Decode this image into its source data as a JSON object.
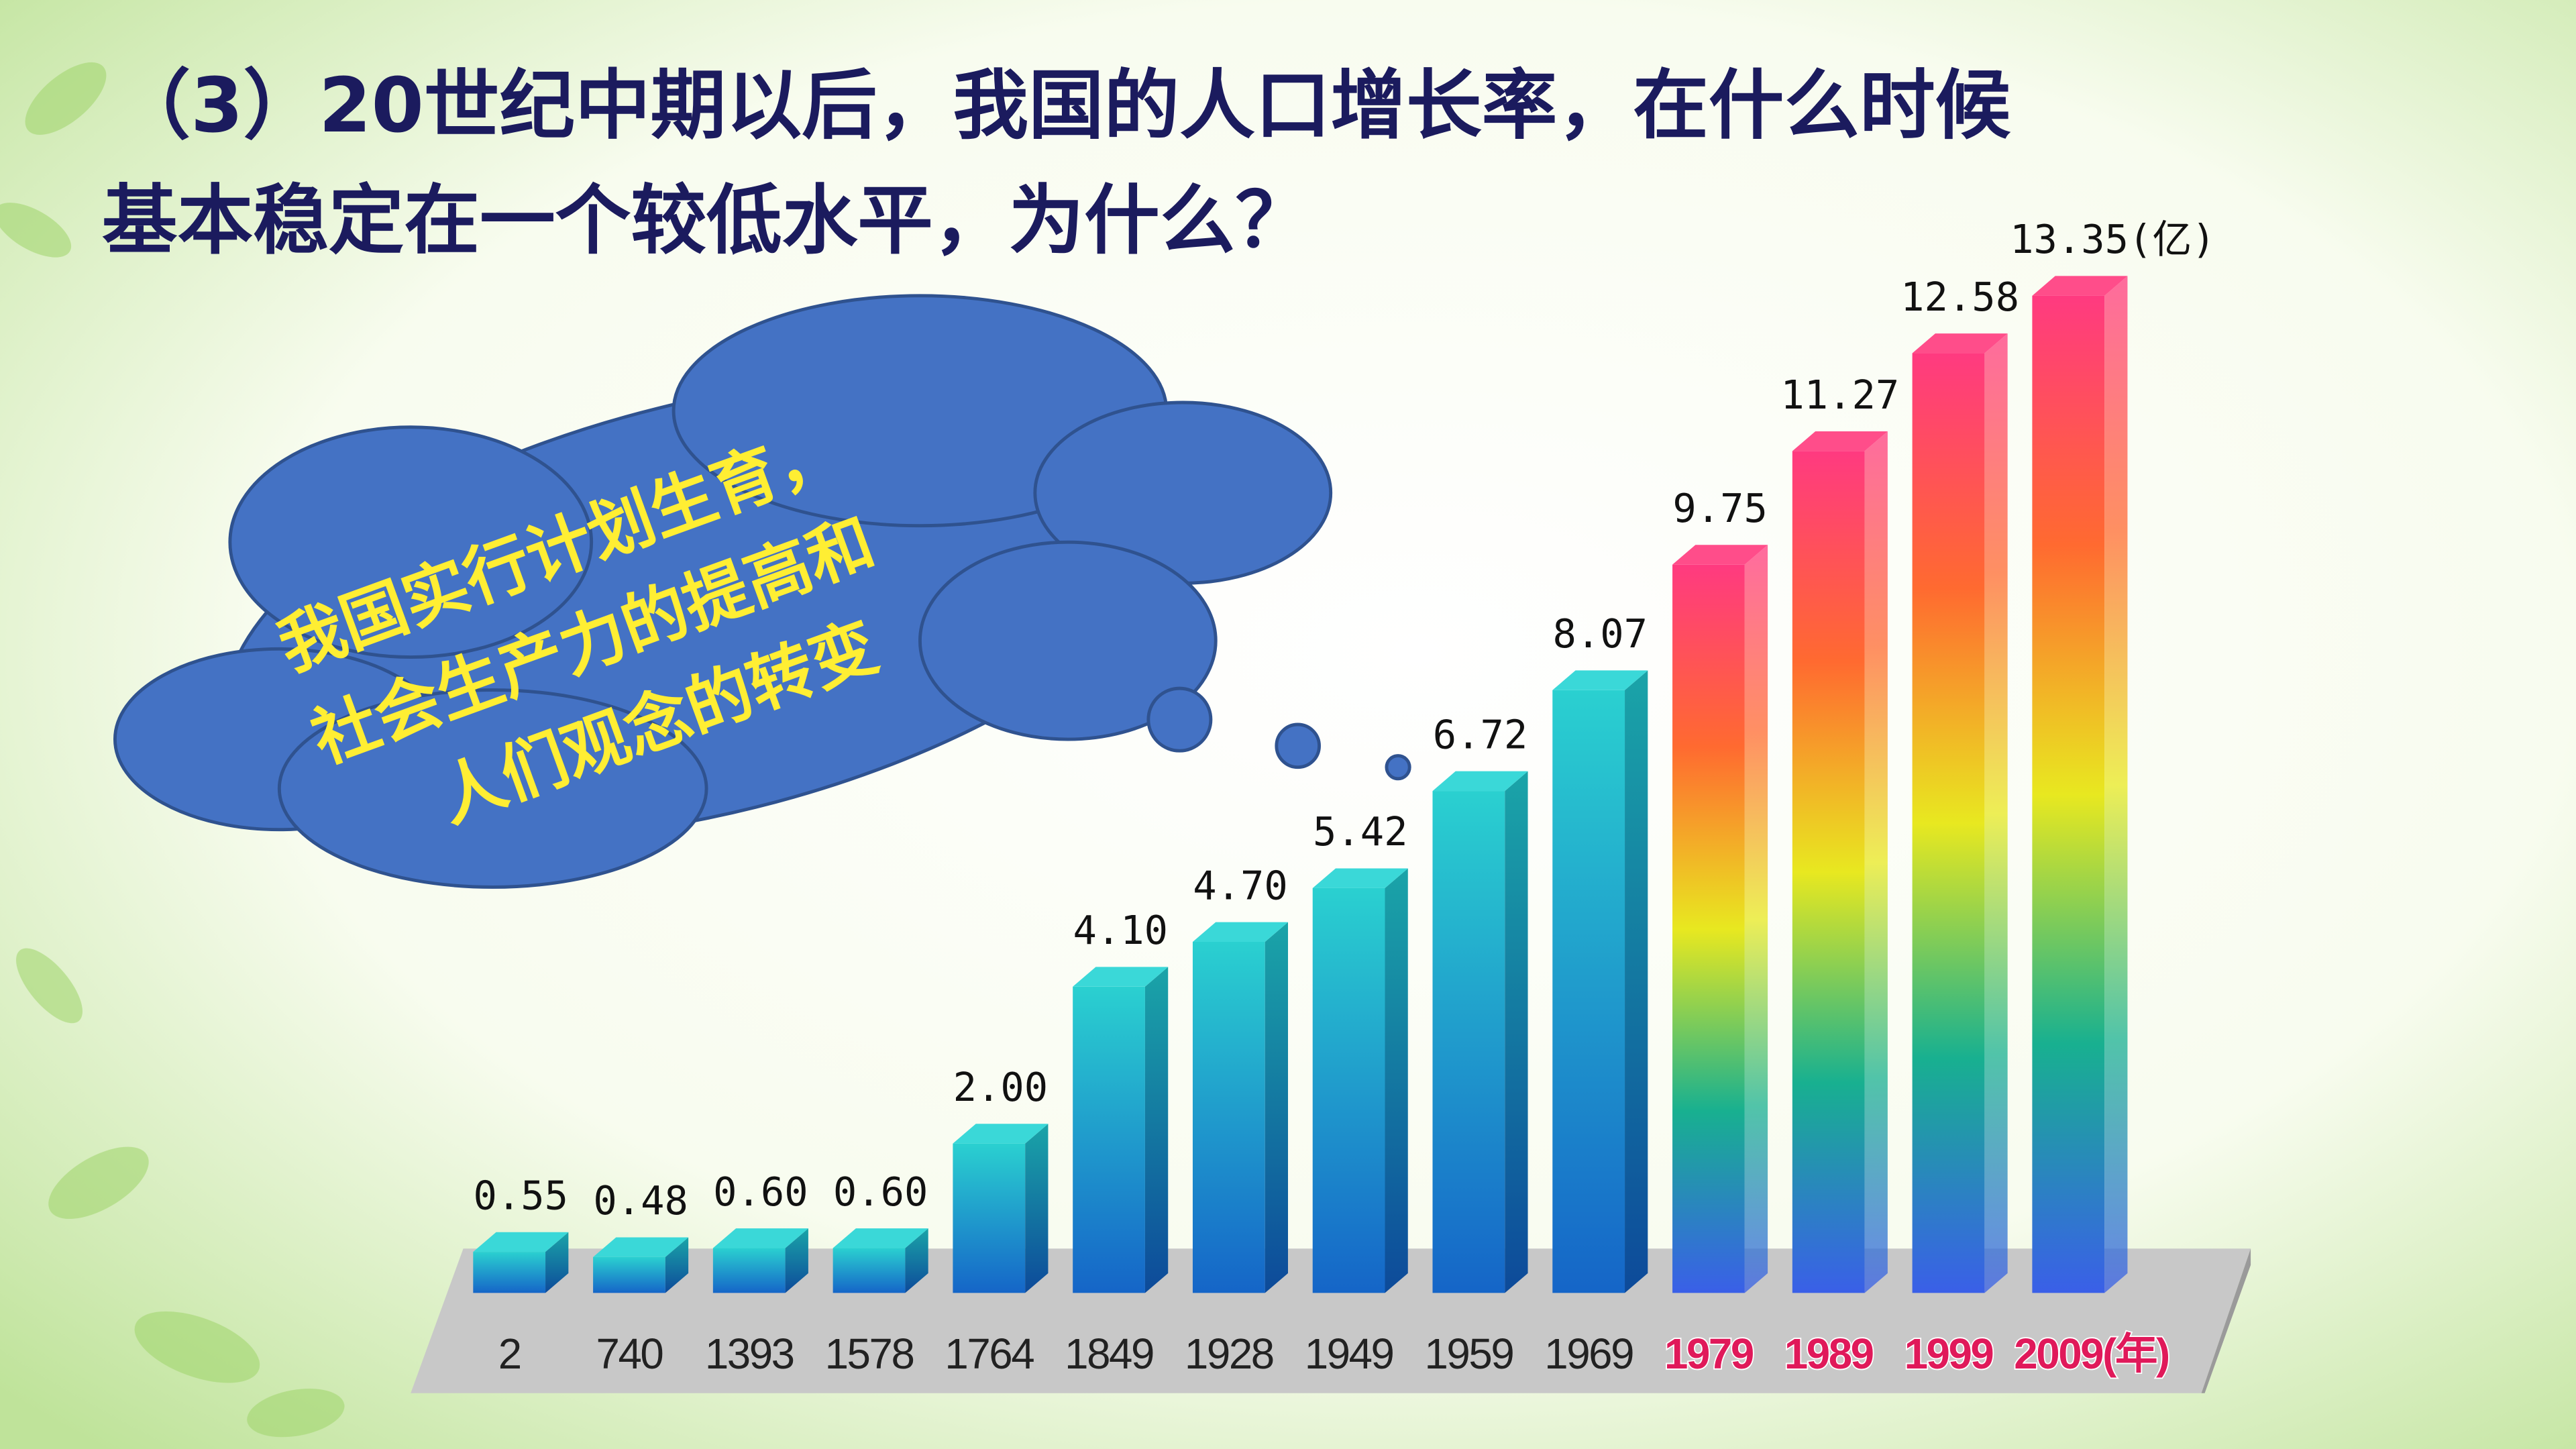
{
  "title_lines": [
    "（3）20世纪中期以后，我国的人口增长率，在什么时候",
    "基本稳定在一个较低水平，为什么？"
  ],
  "callout_lines": [
    "我国实行计划生育，",
    "社会生产力的提高和",
    "人们观念的转变"
  ],
  "chart_data": {
    "type": "bar3d",
    "categories": [
      "2",
      "740",
      "1393",
      "1578",
      "1764",
      "1849",
      "1928",
      "1949",
      "1959",
      "1969",
      "1979",
      "1989",
      "1999",
      "2009(年)"
    ],
    "values": [
      0.55,
      0.48,
      0.6,
      0.6,
      2.0,
      4.1,
      4.7,
      5.42,
      6.72,
      8.07,
      9.75,
      11.27,
      12.58,
      13.35
    ],
    "value_labels": [
      "0.55",
      "0.48",
      "0.60",
      "0.60",
      "2.00",
      "4.10",
      "4.70",
      "5.42",
      "6.72",
      "8.07",
      "9.75",
      "11.27",
      "12.58",
      "13.35(亿)"
    ],
    "color": "#1e88d0"
  }
}
